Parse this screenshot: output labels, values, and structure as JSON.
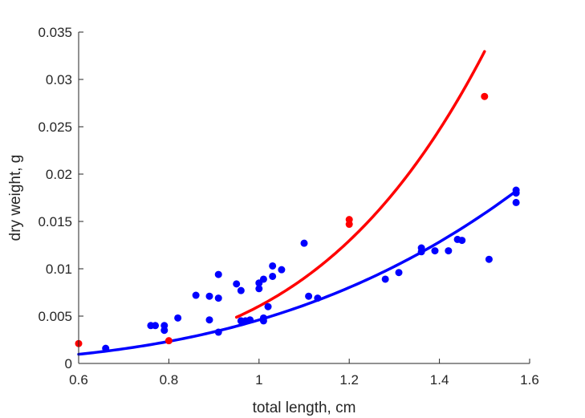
{
  "chart_data": {
    "type": "scatter",
    "title": "",
    "xlabel": "total length, cm",
    "ylabel": "dry weight, g",
    "xlim": [
      0.6,
      1.6
    ],
    "ylim": [
      0,
      0.035
    ],
    "xticks": [
      0.6,
      0.8,
      1.0,
      1.2,
      1.4,
      1.6
    ],
    "xtick_labels": [
      "0.6",
      "0.8",
      "1",
      "1.2",
      "1.4",
      "1.6"
    ],
    "yticks": [
      0,
      0.005,
      0.01,
      0.015,
      0.02,
      0.025,
      0.03,
      0.035
    ],
    "ytick_labels": [
      "0",
      "0.005",
      "0.01",
      "0.015",
      "0.02",
      "0.025",
      "0.03",
      "0.035"
    ],
    "grid": false,
    "legend": "none",
    "series": [
      {
        "color": "#0000ff",
        "points": [
          [
            0.66,
            0.0016
          ],
          [
            0.76,
            0.004
          ],
          [
            0.77,
            0.004
          ],
          [
            0.79,
            0.004
          ],
          [
            0.79,
            0.0035
          ],
          [
            0.82,
            0.0048
          ],
          [
            0.86,
            0.0072
          ],
          [
            0.89,
            0.0071
          ],
          [
            0.89,
            0.0046
          ],
          [
            0.91,
            0.0094
          ],
          [
            0.91,
            0.0069
          ],
          [
            0.91,
            0.0033
          ],
          [
            0.95,
            0.0084
          ],
          [
            0.96,
            0.0077
          ],
          [
            0.96,
            0.0045
          ],
          [
            0.97,
            0.0045
          ],
          [
            0.98,
            0.0046
          ],
          [
            1.0,
            0.0085
          ],
          [
            1.0,
            0.0079
          ],
          [
            1.01,
            0.0089
          ],
          [
            1.01,
            0.0045
          ],
          [
            1.01,
            0.0048
          ],
          [
            1.02,
            0.006
          ],
          [
            1.03,
            0.0103
          ],
          [
            1.03,
            0.0092
          ],
          [
            1.05,
            0.0099
          ],
          [
            1.1,
            0.0127
          ],
          [
            1.11,
            0.0071
          ],
          [
            1.13,
            0.0069
          ],
          [
            1.28,
            0.0089
          ],
          [
            1.31,
            0.0096
          ],
          [
            1.36,
            0.0118
          ],
          [
            1.36,
            0.0122
          ],
          [
            1.39,
            0.0119
          ],
          [
            1.42,
            0.0119
          ],
          [
            1.44,
            0.0131
          ],
          [
            1.45,
            0.013
          ],
          [
            1.51,
            0.011
          ],
          [
            1.57,
            0.0183
          ],
          [
            1.57,
            0.018
          ],
          [
            1.57,
            0.017
          ]
        ],
        "fit": {
          "a": 0.0046,
          "b": 3.05,
          "x_range": [
            0.6,
            1.57
          ]
        }
      },
      {
        "color": "#ff0000",
        "points": [
          [
            0.6,
            0.0021
          ],
          [
            0.8,
            0.0024
          ],
          [
            1.2,
            0.0152
          ],
          [
            1.2,
            0.0147
          ],
          [
            1.5,
            0.0282
          ]
        ],
        "fit": {
          "a": 0.00605,
          "b": 4.18,
          "x_range": [
            0.95,
            1.5
          ]
        }
      }
    ]
  }
}
